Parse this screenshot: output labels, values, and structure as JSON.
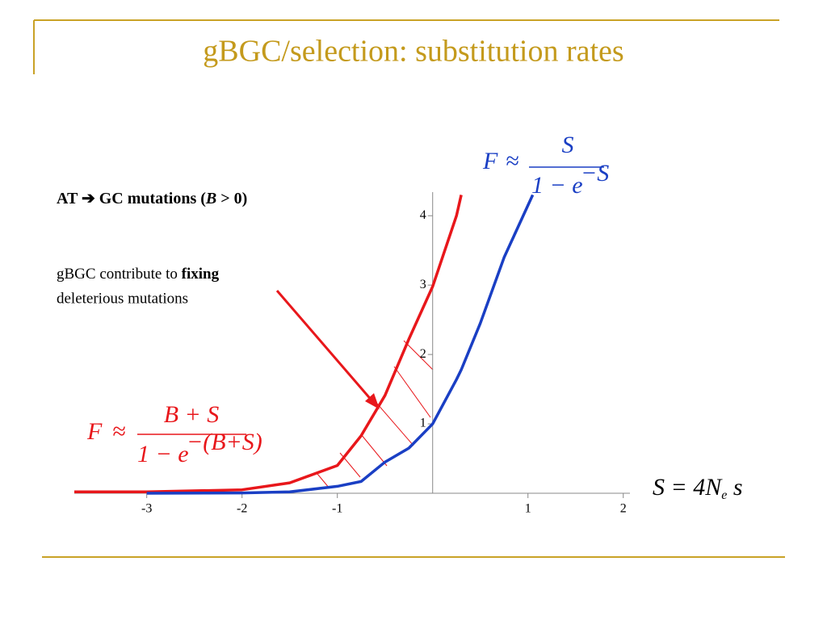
{
  "chart_data": {
    "type": "line",
    "title": "gBGC/selection: substitution rates",
    "heading": {
      "prefix": "AT ➔ GC mutations (",
      "var": "B",
      "suffix": " > 0)"
    },
    "annotation": {
      "text": "gBGC contribute to ",
      "bold": "fixing",
      "line2": "deleterious mutations"
    },
    "formula_blue": {
      "lhs": "F",
      "approx": "≈",
      "num": "S",
      "den": "1 − e",
      "sup": "−S"
    },
    "formula_red": {
      "lhs": "F",
      "approx": "≈",
      "num": "B + S",
      "den": "1 − e",
      "sup": "−(B+S)"
    },
    "x_label": {
      "main": "S = 4N",
      "sub": "e",
      "tail": " s"
    },
    "x": [
      -3.76,
      -3,
      -2,
      -1.5,
      -1,
      -0.75,
      -0.5,
      -0.25,
      0,
      0.25,
      0.3,
      0.5,
      0.75,
      1.05
    ],
    "series": [
      {
        "name": "B + S",
        "color": "#e8171b",
        "values": [
          0.02,
          0.02,
          0.05,
          0.15,
          0.4,
          0.83,
          1.41,
          2.22,
          2.98,
          4.0,
          4.3,
          null,
          null,
          null
        ]
      },
      {
        "name": "S",
        "color": "#1a3fc4",
        "values": [
          null,
          0,
          0.005,
          0.02,
          0.1,
          0.17,
          0.45,
          0.65,
          1.0,
          1.64,
          1.78,
          2.45,
          3.4,
          4.3
        ]
      }
    ],
    "xlim": [
      -3.76,
      2.07
    ],
    "ylim": [
      0,
      4.34
    ],
    "xticks": [
      -3,
      -2,
      -1,
      1,
      2
    ],
    "yticks": [
      1,
      2,
      3,
      4
    ]
  }
}
